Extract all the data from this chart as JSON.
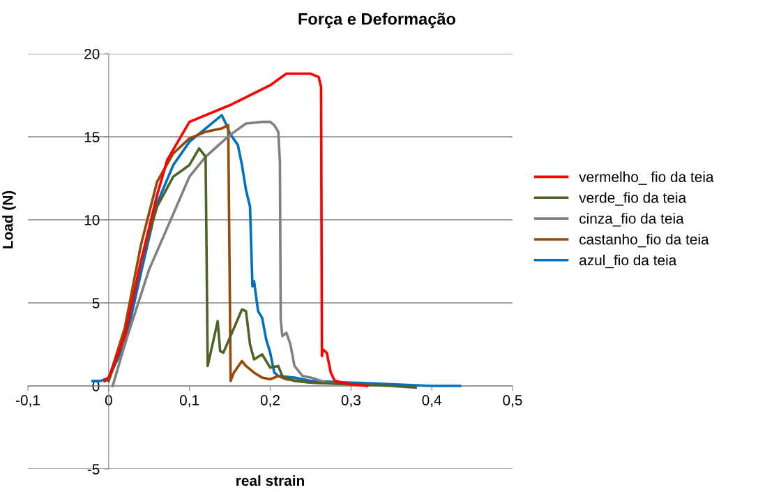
{
  "chart_data": {
    "type": "line",
    "title": "Força e Deformação",
    "xlabel": "real strain",
    "ylabel": "Load (N)",
    "xlim": [
      -0.1,
      0.5
    ],
    "ylim": [
      -5,
      20
    ],
    "xticks": [
      {
        "value": -0.1,
        "label": "-0,1"
      },
      0,
      {
        "value": 0.1,
        "label": "0,1"
      },
      {
        "value": 0.2,
        "label": "0,2"
      },
      {
        "value": 0.3,
        "label": "0,3"
      },
      {
        "value": 0.4,
        "label": "0,4"
      },
      {
        "value": 0.5,
        "label": "0,5"
      }
    ],
    "yticks": [
      -5,
      0,
      5,
      10,
      15,
      20
    ],
    "grid": "y",
    "legend": "right",
    "marker": "none",
    "line_style": "solid",
    "series": [
      {
        "name": "vermelho_ fio da teia",
        "color": "#ff0000",
        "x": [
          -0.005,
          0,
          0.02,
          0.04,
          0.06,
          0.0725,
          0.1,
          0.15,
          0.2,
          0.22,
          0.25,
          0.26,
          0.263,
          0.264,
          0.265,
          0.27,
          0.275,
          0.28,
          0.29,
          0.3,
          0.32
        ],
        "values": [
          0.3,
          0.5,
          3,
          7.5,
          11.5,
          13.6,
          15.9,
          16.9,
          18.1,
          18.8,
          18.8,
          18.6,
          18,
          1.8,
          2.2,
          2,
          0.8,
          0.3,
          0.2,
          0.1,
          0
        ]
      },
      {
        "name": "verde_fio da teia",
        "color": "#4f6228",
        "x": [
          0,
          0.02,
          0.04,
          0.06,
          0.08,
          0.1,
          0.112,
          0.12,
          0.1226,
          0.135,
          0.138,
          0.142,
          0.165,
          0.17,
          0.175,
          0.18,
          0.19,
          0.2,
          0.21,
          0.215,
          0.23,
          0.25,
          0.3,
          0.35,
          0.38
        ],
        "values": [
          0.3,
          3,
          7.5,
          10.8,
          12.6,
          13.3,
          14.3,
          13.8,
          1.2,
          3.9,
          2.1,
          2,
          4.6,
          4.5,
          2.5,
          1.6,
          1.9,
          1.1,
          1.2,
          0.6,
          0.3,
          0.2,
          0.1,
          0,
          -0.1
        ]
      },
      {
        "name": "cinza_fio da teia",
        "color": "#808080",
        "x": [
          0.005,
          0.02,
          0.05,
          0.1,
          0.12,
          0.15,
          0.17,
          0.19,
          0.2,
          0.205,
          0.21,
          0.212,
          0.213,
          0.215,
          0.22,
          0.225,
          0.23,
          0.24,
          0.25,
          0.27,
          0.3
        ],
        "values": [
          0,
          2.5,
          7,
          12.6,
          13.8,
          15.1,
          15.8,
          15.9,
          15.9,
          15.7,
          15.3,
          13.5,
          4,
          3,
          3.2,
          2.5,
          1.2,
          0.6,
          0.5,
          0.2,
          0.1
        ]
      },
      {
        "name": "castanho_fio da teia",
        "color": "#984807",
        "x": [
          -0.005,
          0,
          0.02,
          0.04,
          0.06,
          0.08,
          0.1,
          0.12,
          0.14,
          0.148,
          0.151,
          0.155,
          0.165,
          0.17,
          0.18,
          0.19,
          0.2,
          0.21,
          0.22,
          0.25,
          0.3
        ],
        "values": [
          0.3,
          0.4,
          3.5,
          8.5,
          12.3,
          14,
          14.9,
          15.3,
          15.5,
          15.7,
          0.3,
          0.8,
          1.5,
          1.2,
          0.8,
          0.5,
          0.4,
          0.6,
          0.4,
          0.2,
          0.1
        ]
      },
      {
        "name": "azul_fio da teia",
        "color": "#0070c0",
        "x": [
          -0.02,
          -0.01,
          0,
          0.02,
          0.04,
          0.06,
          0.08,
          0.1,
          0.12,
          0.14,
          0.145,
          0.15,
          0.16,
          0.165,
          0.17,
          0.175,
          0.178,
          0.18,
          0.185,
          0.19,
          0.195,
          0.2,
          0.205,
          0.21,
          0.23,
          0.25,
          0.3,
          0.35,
          0.4,
          0.435
        ],
        "values": [
          0.3,
          0.3,
          0.5,
          2.5,
          6.8,
          11,
          13.3,
          14.7,
          15.5,
          16.3,
          15.8,
          15.2,
          14.5,
          13.3,
          11.8,
          10.8,
          6,
          6.3,
          4.5,
          4.1,
          2.8,
          2,
          0.8,
          0.6,
          0.5,
          0.3,
          0.2,
          0.1,
          0,
          0
        ]
      }
    ]
  }
}
